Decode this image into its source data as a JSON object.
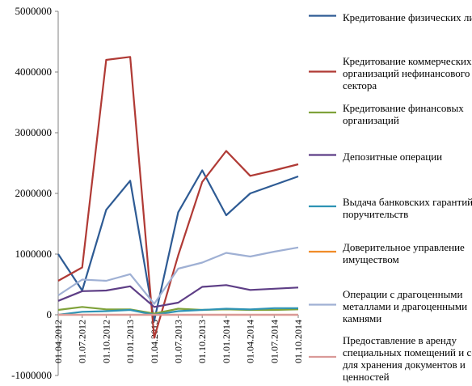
{
  "chart_data": {
    "type": "line",
    "title": "",
    "xlabel": "",
    "ylabel": "",
    "x": [
      "01.04.2012",
      "01.07.2012",
      "01.10.2012",
      "01.01.2013",
      "01.04.2013",
      "01.07.2013",
      "01.10.2013",
      "01.01.2014",
      "01.04.2014",
      "01.07.2014",
      "01.10.2014"
    ],
    "ylim": [
      -1000000,
      5000000
    ],
    "yticks": [
      "-1000000",
      "0",
      "1000000",
      "2000000",
      "3000000",
      "4000000",
      "5000000"
    ],
    "grid": false,
    "legend_position": "right",
    "series": [
      {
        "name": "Кредитование физических лиц",
        "color": "#2E5B94",
        "values": [
          1000000,
          400000,
          1730000,
          2210000,
          -100000,
          1690000,
          2380000,
          1640000,
          2000000,
          2140000,
          2280000
        ]
      },
      {
        "name": "Кредитование коммерческих организаций нефинансового сектора",
        "color": "#B03A35",
        "values": [
          560000,
          780000,
          4200000,
          4250000,
          -380000,
          980000,
          2190000,
          2700000,
          2290000,
          2380000,
          2480000
        ]
      },
      {
        "name": "Кредитование финансовых организаций",
        "color": "#7FA23A",
        "values": [
          80000,
          130000,
          90000,
          90000,
          20000,
          100000,
          80000,
          90000,
          80000,
          80000,
          90000
        ]
      },
      {
        "name": "Депозитные операции",
        "color": "#5E3E86",
        "values": [
          230000,
          390000,
          400000,
          470000,
          130000,
          200000,
          460000,
          490000,
          410000,
          430000,
          450000
        ]
      },
      {
        "name": "Выдача банковских гарантий и поручительств",
        "color": "#2E93B4",
        "values": [
          0,
          50000,
          60000,
          80000,
          0,
          60000,
          80000,
          100000,
          90000,
          110000,
          110000
        ]
      },
      {
        "name": "Доверительное управление имуществом",
        "color": "#F08C28",
        "values": [
          0,
          0,
          0,
          0,
          0,
          0,
          0,
          0,
          0,
          0,
          0
        ]
      },
      {
        "name": "Операции с драгоценными металлами и драгоценными камнями",
        "color": "#9FB0D4",
        "values": [
          320000,
          580000,
          560000,
          670000,
          180000,
          760000,
          860000,
          1020000,
          960000,
          1040000,
          1110000
        ]
      },
      {
        "name": "Предоставление в аренду специальных помещений и сейфов для хранения документов и ценностей",
        "color": "#DA9A98",
        "values": [
          0,
          0,
          0,
          0,
          0,
          0,
          0,
          0,
          0,
          0,
          0
        ]
      }
    ]
  }
}
